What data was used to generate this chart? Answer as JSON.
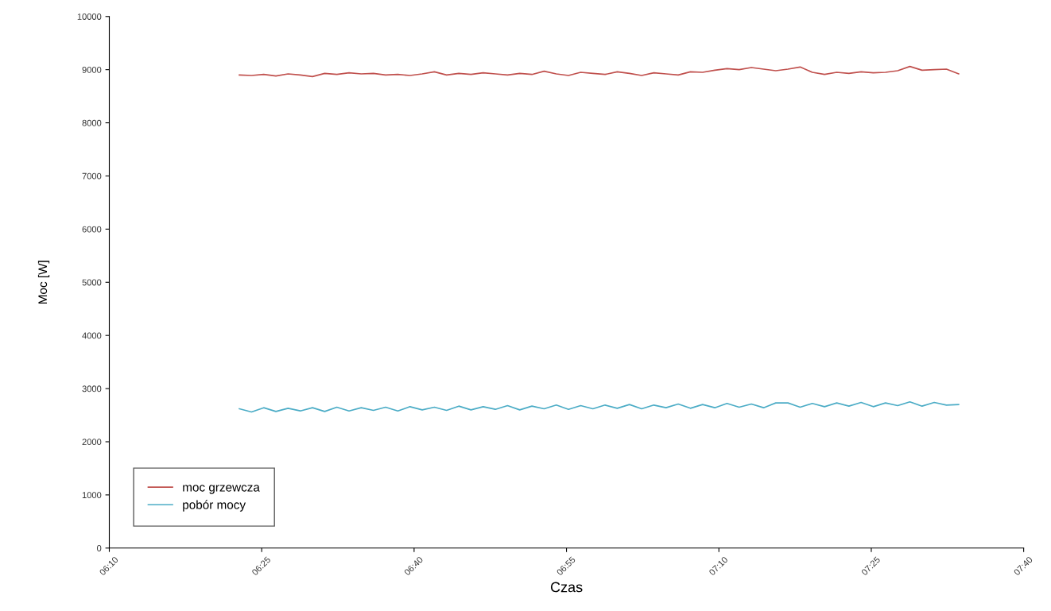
{
  "chart_data": {
    "type": "line",
    "xlabel": "Czas",
    "ylabel": "Moc [W]",
    "x": [
      6.38,
      6.4,
      6.42,
      6.44,
      6.46,
      6.48,
      6.5,
      6.52,
      6.54,
      6.56,
      6.58,
      6.6,
      6.62,
      6.64,
      6.66,
      6.68,
      6.7,
      6.72,
      6.74,
      6.76,
      6.78,
      6.8,
      6.82,
      6.84,
      6.86,
      6.88,
      6.9,
      6.92,
      6.94,
      6.96,
      6.98,
      7.0,
      7.02,
      7.04,
      7.06,
      7.08,
      7.1,
      7.12,
      7.14,
      7.16,
      7.18,
      7.2,
      7.22,
      7.24,
      7.26,
      7.28,
      7.3,
      7.32,
      7.34,
      7.36,
      7.38,
      7.4,
      7.42,
      7.44,
      7.46,
      7.48,
      7.5,
      7.52,
      7.54,
      7.56
    ],
    "series": [
      {
        "name": "moc grzewcza",
        "color": "#c0504d",
        "values": [
          8900,
          8890,
          8910,
          8880,
          8920,
          8900,
          8870,
          8930,
          8910,
          8940,
          8920,
          8930,
          8900,
          8910,
          8890,
          8920,
          8960,
          8900,
          8930,
          8910,
          8940,
          8920,
          8900,
          8930,
          8910,
          8970,
          8920,
          8890,
          8950,
          8930,
          8910,
          8960,
          8930,
          8890,
          8940,
          8920,
          8900,
          8960,
          8950,
          8990,
          9020,
          9000,
          9040,
          9010,
          8980,
          9010,
          9050,
          8950,
          8910,
          8950,
          8930,
          8960,
          8940,
          8950,
          8980,
          9060,
          8990,
          9000,
          9010,
          8920
        ]
      },
      {
        "name": "pobór mocy",
        "color": "#4bacc6",
        "values": [
          2620,
          2560,
          2640,
          2570,
          2630,
          2580,
          2640,
          2570,
          2650,
          2580,
          2640,
          2590,
          2650,
          2580,
          2660,
          2600,
          2650,
          2590,
          2670,
          2600,
          2660,
          2610,
          2680,
          2600,
          2670,
          2620,
          2690,
          2610,
          2680,
          2620,
          2690,
          2630,
          2700,
          2620,
          2690,
          2640,
          2710,
          2630,
          2700,
          2640,
          2720,
          2650,
          2710,
          2640,
          2730,
          2730,
          2650,
          2720,
          2660,
          2730,
          2670,
          2740,
          2660,
          2730,
          2680,
          2750,
          2670,
          2740,
          2690,
          2700
        ]
      }
    ],
    "xlim": [
      6.1667,
      7.6667
    ],
    "xticks": [
      {
        "value": 6.1667,
        "label": "06:10"
      },
      {
        "value": 6.4167,
        "label": "06:25"
      },
      {
        "value": 6.6667,
        "label": "06:40"
      },
      {
        "value": 6.9167,
        "label": "06:55"
      },
      {
        "value": 7.1667,
        "label": "07:10"
      },
      {
        "value": 7.4167,
        "label": "07:25"
      },
      {
        "value": 7.6667,
        "label": "07:40"
      }
    ],
    "ylim": [
      0,
      10000
    ],
    "yticks": [
      0,
      1000,
      2000,
      3000,
      4000,
      5000,
      6000,
      7000,
      8000,
      9000,
      10000
    ],
    "grid": false,
    "legend": "bottom left",
    "marker": "none",
    "line_style": "solid"
  }
}
